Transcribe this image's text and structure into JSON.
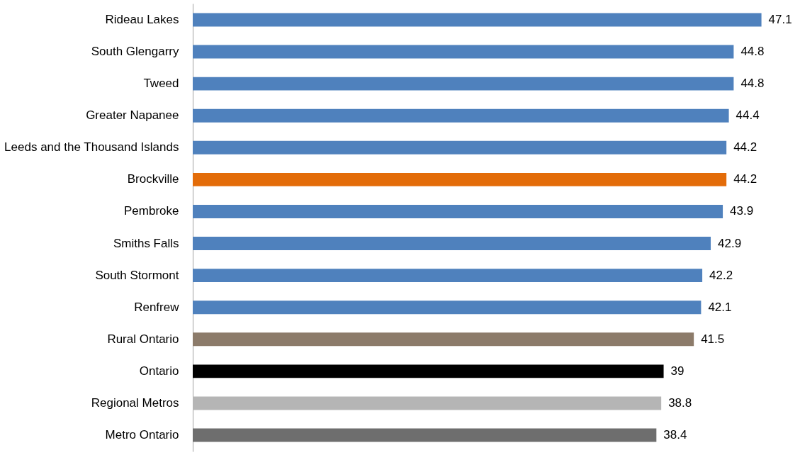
{
  "chart_data": {
    "type": "bar",
    "orientation": "horizontal",
    "data_labels": true,
    "grid": false,
    "categories": [
      "Rideau Lakes",
      "South Glengarry",
      "Tweed",
      "Greater Napanee",
      "Leeds and the Thousand Islands",
      "Brockville",
      "Pembroke",
      "Smiths Falls",
      "South Stormont",
      "Renfrew",
      "Rural Ontario",
      "Ontario",
      "Regional Metros",
      "Metro Ontario"
    ],
    "values": [
      47.1,
      44.8,
      44.8,
      44.4,
      44.2,
      44.2,
      43.9,
      42.9,
      42.2,
      42.1,
      41.5,
      39,
      38.8,
      38.4
    ],
    "colors": [
      "#4f81bd",
      "#4f81bd",
      "#4f81bd",
      "#4f81bd",
      "#4f81bd",
      "#e36c09",
      "#4f81bd",
      "#4f81bd",
      "#4f81bd",
      "#4f81bd",
      "#8c7b6a",
      "#000000",
      "#b5b5b5",
      "#6e6e6e"
    ]
  }
}
